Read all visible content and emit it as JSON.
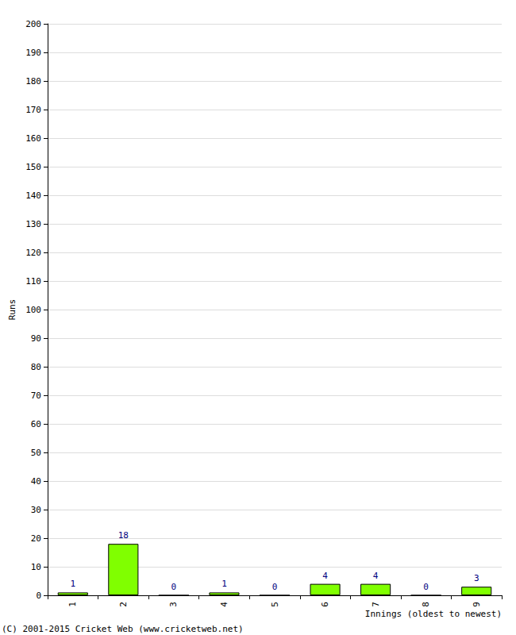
{
  "chart_data": {
    "type": "bar",
    "x_label": "Innings (oldest to newest)",
    "y_label": "Runs",
    "categories": [
      "1",
      "2",
      "3",
      "4",
      "5",
      "6",
      "7",
      "8",
      "9"
    ],
    "values": [
      1,
      18,
      0,
      1,
      0,
      4,
      4,
      0,
      3
    ],
    "color": "#80ff00",
    "ylim": [
      0,
      200
    ],
    "yticks": [
      0,
      10,
      20,
      30,
      40,
      50,
      60,
      70,
      80,
      90,
      100,
      110,
      120,
      130,
      140,
      150,
      160,
      170,
      180,
      190,
      200
    ],
    "grid": true,
    "data_labels": true,
    "annotations": [
      "(C) 2001-2015 Cricket Web (www.cricketweb.net)"
    ]
  }
}
